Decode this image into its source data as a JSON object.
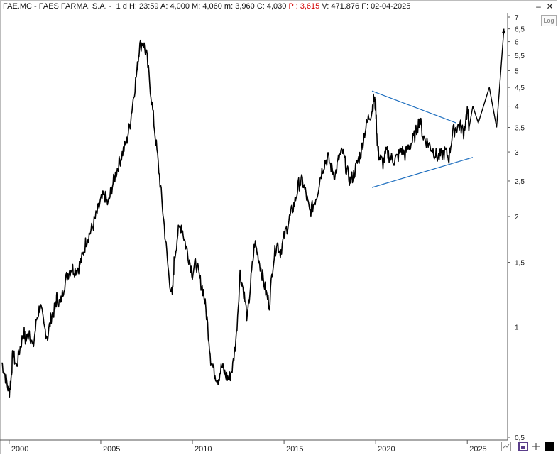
{
  "header": {
    "symbol": "FAE.MC",
    "name": "FAES FARMA, S.A.",
    "separator": "-",
    "timeframe": "1 d",
    "h_time": "H: 23:59",
    "a": "A: 4,000",
    "m_max": "M: 4,060",
    "m_min": "m: 3,960",
    "c": "C: 4,030",
    "p": "P : 3,615",
    "v": "V: 471.876",
    "f": "F: 02-04-2025"
  },
  "window_buttons": {
    "minimize": "–",
    "close": "✕"
  },
  "log_button": "Log",
  "toolbar_icons": [
    "zoom-icon",
    "save-icon",
    "cursor-icon",
    "fullscreen-icon"
  ],
  "colors": {
    "price": "#000000",
    "trendline": "#1f6fbf",
    "header_price": "#d40000"
  },
  "chart_data": {
    "type": "line",
    "scale": "log",
    "ylim": [
      0.5,
      7
    ],
    "xlim": [
      1999.5,
      2027.2
    ],
    "y_ticks": [
      "7",
      "6,5",
      "6",
      "5,5",
      "5",
      "4,5",
      "4",
      "3,5",
      "3",
      "2,5",
      "2",
      "1,5",
      "1",
      "0,5"
    ],
    "y_tick_values": [
      7,
      6.5,
      6,
      5.5,
      5,
      4.5,
      4,
      3.5,
      3,
      2.5,
      2,
      1.5,
      1,
      0.5
    ],
    "x_ticks": [
      "2000",
      "2005",
      "2010",
      "2015",
      "2020",
      "2025"
    ],
    "x_tick_values": [
      2000,
      2005,
      2010,
      2015,
      2020,
      2025
    ],
    "grid": false,
    "series": [
      {
        "x": [
          1999.6,
          1999.8,
          2000.0,
          2000.1,
          2000.2,
          2000.4,
          2000.6,
          2000.8,
          2000.9,
          2001.1,
          2001.3,
          2001.5,
          2001.7,
          2001.9,
          2002.1,
          2002.3,
          2002.5,
          2002.6,
          2002.8,
          2003.0,
          2003.2,
          2003.4,
          2003.6,
          2003.8,
          2004.0,
          2004.2,
          2004.4,
          2004.6,
          2004.8,
          2005.0,
          2005.2,
          2005.4,
          2005.6,
          2005.8,
          2006.0,
          2006.2,
          2006.4,
          2006.6,
          2006.8,
          2007.0,
          2007.1,
          2007.3,
          2007.5,
          2007.7,
          2007.9,
          2008.1,
          2008.3,
          2008.5,
          2008.7,
          2008.9,
          2009.0,
          2009.2,
          2009.4,
          2009.6,
          2009.8,
          2010.0,
          2010.2,
          2010.4,
          2010.6,
          2010.8,
          2011.0,
          2011.2,
          2011.4,
          2011.6,
          2011.8,
          2012.0,
          2012.2,
          2012.4,
          2012.6,
          2012.8,
          2013.0,
          2013.2,
          2013.4,
          2013.6,
          2013.8,
          2014.0,
          2014.2,
          2014.4,
          2014.6,
          2014.8,
          2015.0,
          2015.2,
          2015.4,
          2015.6,
          2015.8,
          2016.0,
          2016.2,
          2016.4,
          2016.6,
          2016.8,
          2017.0,
          2017.2,
          2017.4,
          2017.6,
          2017.8,
          2018.0,
          2018.2,
          2018.4,
          2018.6,
          2018.8,
          2019.0,
          2019.2,
          2019.4,
          2019.6,
          2019.8,
          2019.9,
          2020.0,
          2020.1,
          2020.2,
          2020.4,
          2020.6,
          2020.8,
          2021.0,
          2021.2,
          2021.4,
          2021.6,
          2021.8,
          2022.0,
          2022.2,
          2022.4,
          2022.6,
          2022.8,
          2023.0,
          2023.2,
          2023.4,
          2023.6,
          2023.8,
          2024.0,
          2024.2,
          2024.4,
          2024.6,
          2024.8,
          2025.0,
          2025.1
        ],
        "values": [
          0.8,
          0.73,
          0.66,
          0.72,
          0.85,
          0.78,
          0.88,
          0.97,
          0.91,
          0.98,
          0.87,
          1.05,
          1.15,
          1.0,
          0.94,
          1.07,
          1.12,
          1.2,
          1.15,
          1.3,
          1.4,
          1.45,
          1.43,
          1.46,
          1.55,
          1.72,
          1.8,
          1.9,
          2.05,
          2.2,
          2.3,
          2.15,
          2.4,
          2.6,
          2.8,
          3.0,
          3.2,
          3.6,
          4.3,
          5.1,
          5.8,
          6.0,
          5.5,
          4.5,
          3.6,
          2.9,
          2.3,
          1.8,
          1.4,
          1.2,
          1.5,
          1.8,
          1.9,
          1.7,
          1.55,
          1.4,
          1.5,
          1.35,
          1.25,
          1.05,
          0.82,
          0.75,
          0.72,
          0.78,
          0.74,
          0.72,
          0.78,
          0.95,
          1.4,
          1.25,
          1.05,
          1.35,
          1.7,
          1.55,
          1.4,
          1.25,
          1.15,
          1.5,
          1.7,
          1.6,
          1.75,
          1.9,
          2.05,
          2.2,
          2.45,
          2.5,
          2.3,
          2.05,
          2.15,
          2.3,
          2.6,
          2.8,
          2.9,
          2.7,
          2.6,
          2.9,
          3.0,
          2.7,
          2.5,
          2.6,
          2.8,
          3.0,
          3.4,
          3.7,
          3.9,
          4.2,
          4.0,
          3.1,
          2.9,
          2.8,
          3.0,
          2.9,
          2.85,
          2.9,
          3.05,
          2.95,
          3.1,
          3.2,
          3.4,
          3.7,
          3.3,
          3.2,
          3.1,
          3.0,
          2.9,
          2.95,
          3.0,
          2.9,
          3.4,
          3.5,
          3.55,
          3.4,
          3.9,
          3.5
        ]
      }
    ],
    "projection": {
      "x": [
        2025.1,
        2025.3,
        2025.6,
        2026.2,
        2026.6,
        2027.0
      ],
      "values": [
        3.5,
        4.0,
        3.6,
        4.5,
        3.5,
        6.5
      ]
    },
    "trendlines": [
      {
        "x": [
          2019.8,
          2024.4
        ],
        "values": [
          4.4,
          3.6
        ]
      },
      {
        "x": [
          2019.8,
          2025.3
        ],
        "values": [
          2.4,
          2.9
        ]
      }
    ]
  }
}
